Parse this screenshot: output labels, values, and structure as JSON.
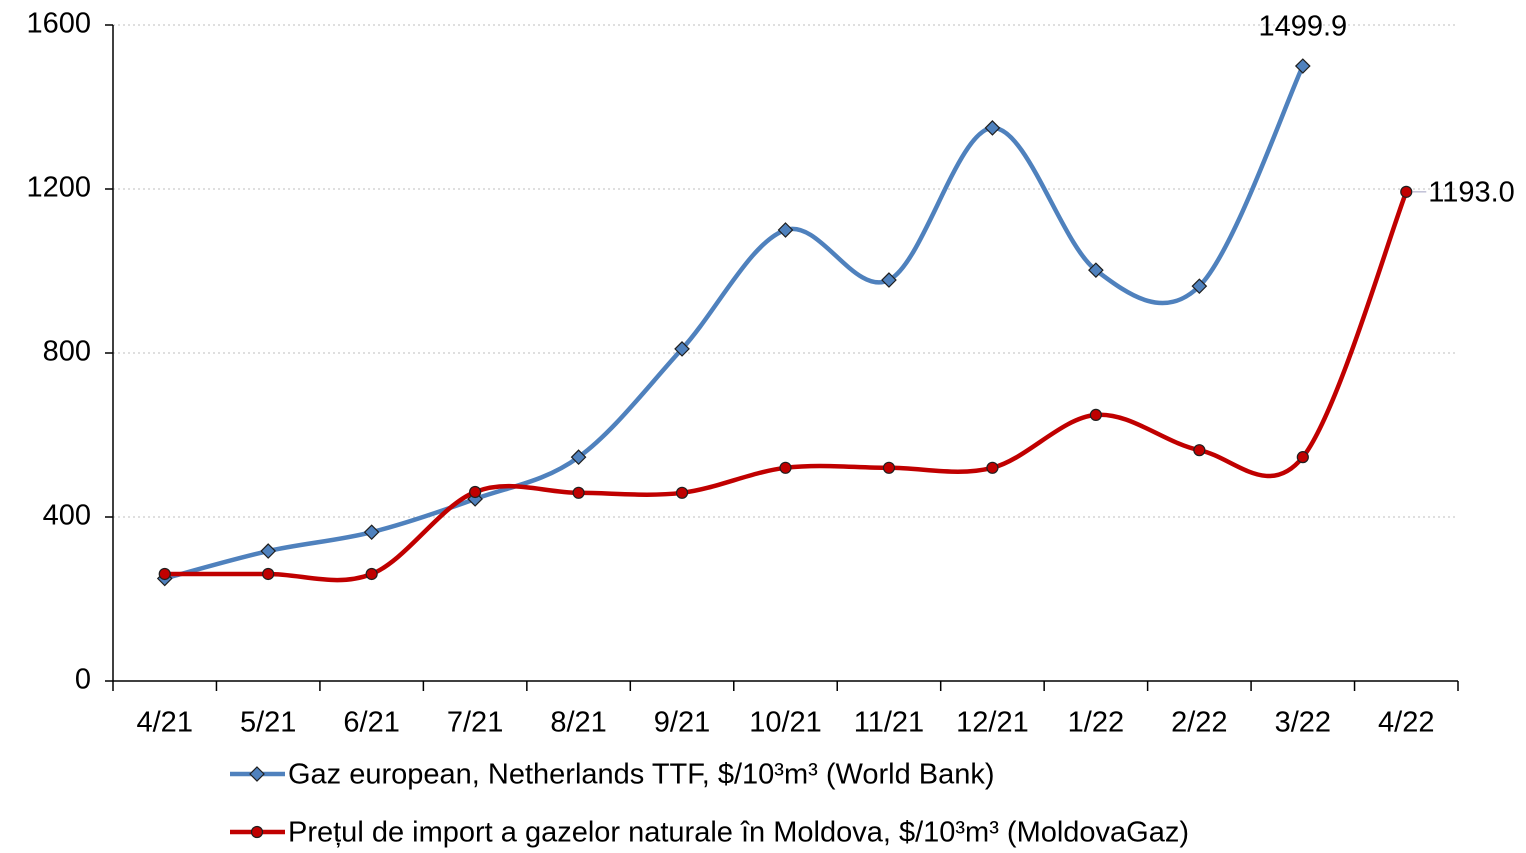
{
  "chart_data": {
    "type": "line",
    "categories": [
      "4/21",
      "5/21",
      "6/21",
      "7/21",
      "8/21",
      "9/21",
      "10/21",
      "11/21",
      "12/21",
      "1/22",
      "2/22",
      "3/22",
      "4/22"
    ],
    "series": [
      {
        "name": "Gaz european, Netherlands TTF, $/10³m³ (World Bank)",
        "color": "#4f81bd",
        "marker": "diamond",
        "values": [
          250,
          317,
          363,
          444,
          546,
          810,
          1100,
          978,
          1349,
          1002,
          963,
          1499.9,
          null
        ],
        "value_labels": [
          null,
          null,
          null,
          null,
          null,
          null,
          null,
          null,
          null,
          null,
          null,
          "1499.9",
          null
        ]
      },
      {
        "name": "Prețul de import a gazelor naturale în Moldova, $/10³m³ (MoldovaGaz)",
        "color": "#c00000",
        "marker": "circle",
        "values": [
          261,
          261,
          261,
          461,
          459,
          459,
          520,
          520,
          520,
          649,
          563,
          546,
          1193
        ],
        "value_labels": [
          null,
          null,
          null,
          null,
          null,
          null,
          null,
          null,
          null,
          null,
          null,
          null,
          "1193.0"
        ]
      }
    ],
    "ylim": [
      0,
      1600
    ],
    "yticks": [
      0,
      400,
      800,
      1200,
      1600
    ],
    "grid": true,
    "smooth": true,
    "legend": "bottom"
  }
}
